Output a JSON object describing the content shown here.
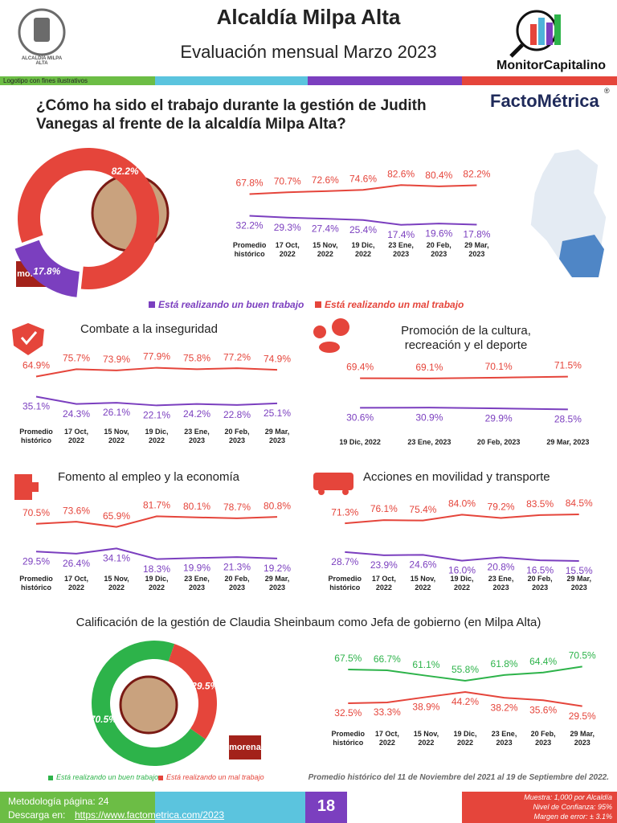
{
  "header": {
    "title": "Alcaldía Milpa Alta",
    "subtitle": "Evaluación mensual Marzo 2023",
    "logo_text": "ALCALDÍA MILPA ALTA",
    "logo_note": "Logotipo con fines ilustrativos",
    "monitor": "MonitorCapitalino",
    "facto": "FactoMétrica",
    "registered": "®"
  },
  "question": "¿Cómo ha sido el trabajo durante la gestión de Judith Vanegas al frente de la alcaldía Milpa Alta?",
  "party_logo": "morena",
  "note": "Promedio histórico del 11 de Noviembre del 2021 al 19 de Septiembre del 2022.",
  "chart_data": [
    {
      "type": "donut",
      "categories": [
        "Está realizando un buen trabajo",
        "Está realizando un mal trabajo"
      ],
      "values": [
        17.8,
        82.2
      ],
      "value_labels": [
        "17.8%",
        "82.2%"
      ],
      "colors": [
        "#7b3fbf",
        "#e5453b"
      ]
    },
    {
      "type": "line",
      "categories": [
        "Promedio histórico",
        "17 Oct, 2022",
        "15 Nov, 2022",
        "19 Dic, 2022",
        "23 Ene, 2023",
        "20 Feb, 2023",
        "29 Mar, 2023"
      ],
      "series": [
        {
          "color": "#e5453b",
          "values": [
            67.8,
            70.7,
            72.6,
            74.6,
            82.6,
            80.4,
            82.2
          ],
          "value_labels": [
            "67.8%",
            "70.7%",
            "72.6%",
            "74.6%",
            "82.6%",
            "80.4%",
            "82.2%"
          ]
        },
        {
          "color": "#7b3fbf",
          "values": [
            32.2,
            29.3,
            27.4,
            25.4,
            17.4,
            19.6,
            17.8
          ],
          "value_labels": [
            "32.2%",
            "29.3%",
            "27.4%",
            "25.4%",
            "17.4%",
            "19.6%",
            "17.8%"
          ]
        }
      ]
    },
    {
      "type": "line",
      "title": "Combate a la inseguridad",
      "categories": [
        "Promedio histórico",
        "17 Oct, 2022",
        "15 Nov, 2022",
        "19 Dic, 2022",
        "23 Ene, 2023",
        "20 Feb, 2023",
        "29 Mar, 2023"
      ],
      "series": [
        {
          "color": "#e5453b",
          "values": [
            64.9,
            75.7,
            73.9,
            77.9,
            75.8,
            77.2,
            74.9
          ],
          "value_labels": [
            "64.9%",
            "75.7%",
            "73.9%",
            "77.9%",
            "75.8%",
            "77.2%",
            "74.9%"
          ]
        },
        {
          "color": "#7b3fbf",
          "values": [
            35.1,
            24.3,
            26.1,
            22.1,
            24.2,
            22.8,
            25.1
          ],
          "value_labels": [
            "35.1%",
            "24.3%",
            "26.1%",
            "22.1%",
            "24.2%",
            "22.8%",
            "25.1%"
          ]
        }
      ]
    },
    {
      "type": "line",
      "title": "Promoción de la cultura, recreación y el deporte",
      "categories": [
        "19 Dic, 2022",
        "23 Ene, 2023",
        "20 Feb, 2023",
        "29 Mar, 2023"
      ],
      "series": [
        {
          "color": "#e5453b",
          "values": [
            69.4,
            69.1,
            70.1,
            71.5
          ],
          "value_labels": [
            "69.4%",
            "69.1%",
            "70.1%",
            "71.5%"
          ]
        },
        {
          "color": "#7b3fbf",
          "values": [
            30.6,
            30.9,
            29.9,
            28.5
          ],
          "value_labels": [
            "30.6%",
            "30.9%",
            "29.9%",
            "28.5%"
          ]
        }
      ]
    },
    {
      "type": "line",
      "title": "Fomento al empleo y la economía",
      "categories": [
        "Promedio histórico",
        "17 Oct, 2022",
        "15 Nov, 2022",
        "19 Dic, 2022",
        "23 Ene, 2023",
        "20 Feb, 2023",
        "29 Mar, 2023"
      ],
      "series": [
        {
          "color": "#e5453b",
          "values": [
            70.5,
            73.6,
            65.9,
            81.7,
            80.1,
            78.7,
            80.8
          ],
          "value_labels": [
            "70.5%",
            "73.6%",
            "65.9%",
            "81.7%",
            "80.1%",
            "78.7%",
            "80.8%"
          ]
        },
        {
          "color": "#7b3fbf",
          "values": [
            29.5,
            26.4,
            34.1,
            18.3,
            19.9,
            21.3,
            19.2
          ],
          "value_labels": [
            "29.5%",
            "26.4%",
            "34.1%",
            "18.3%",
            "19.9%",
            "21.3%",
            "19.2%"
          ]
        }
      ]
    },
    {
      "type": "line",
      "title": "Acciones en movilidad y transporte",
      "categories": [
        "Promedio histórico",
        "17 Oct, 2022",
        "15 Nov, 2022",
        "19 Dic, 2022",
        "23 Ene, 2023",
        "20 Feb, 2023",
        "29 Mar, 2023"
      ],
      "series": [
        {
          "color": "#e5453b",
          "values": [
            71.3,
            76.1,
            75.4,
            84,
            79.2,
            83.5,
            84.5
          ],
          "value_labels": [
            "71.3%",
            "76.1%",
            "75.4%",
            "84.0%",
            "79.2%",
            "83.5%",
            "84.5%"
          ]
        },
        {
          "color": "#7b3fbf",
          "values": [
            28.7,
            23.9,
            24.6,
            16,
            20.8,
            16.5,
            15.5
          ],
          "value_labels": [
            "28.7%",
            "23.9%",
            "24.6%",
            "16.0%",
            "20.8%",
            "16.5%",
            "15.5%"
          ]
        }
      ]
    },
    {
      "type": "donut",
      "title": "Calificación de la gestión de Claudia Sheinbaum como Jefa de gobierno (en Milpa Alta)",
      "categories": [
        "Está realizando un buen trabajo",
        "Está realizando un mal trabajo"
      ],
      "values": [
        70.5,
        29.5
      ],
      "value_labels": [
        "70.5%",
        "29.5%"
      ],
      "colors": [
        "#2db34a",
        "#e5453b"
      ]
    },
    {
      "type": "line",
      "categories": [
        "Promedio histórico",
        "17 Oct, 2022",
        "15 Nov, 2022",
        "19 Dic, 2022",
        "23 Ene, 2023",
        "20 Feb, 2023",
        "29 Mar, 2023"
      ],
      "series": [
        {
          "color": "#2db34a",
          "values": [
            67.5,
            66.7,
            61.1,
            55.8,
            61.8,
            64.4,
            70.5
          ],
          "value_labels": [
            "67.5%",
            "66.7%",
            "61.1%",
            "55.8%",
            "61.8%",
            "64.4%",
            "70.5%"
          ]
        },
        {
          "color": "#e5453b",
          "values": [
            32.5,
            33.3,
            38.9,
            44.2,
            38.2,
            35.6,
            29.5
          ],
          "value_labels": [
            "32.5%",
            "33.3%",
            "38.9%",
            "44.2%",
            "38.2%",
            "35.6%",
            "29.5%"
          ]
        }
      ]
    }
  ],
  "footer": {
    "method": "Metodología página: 24",
    "download": "Descarga en:",
    "url": "https://www.factometrica.com/2023",
    "page": "18",
    "sample": "Muestra: 1,000 por Alcaldía",
    "confidence": "Nivel de Confianza: 95%",
    "error": "Margen de error: ± 3.1%"
  }
}
